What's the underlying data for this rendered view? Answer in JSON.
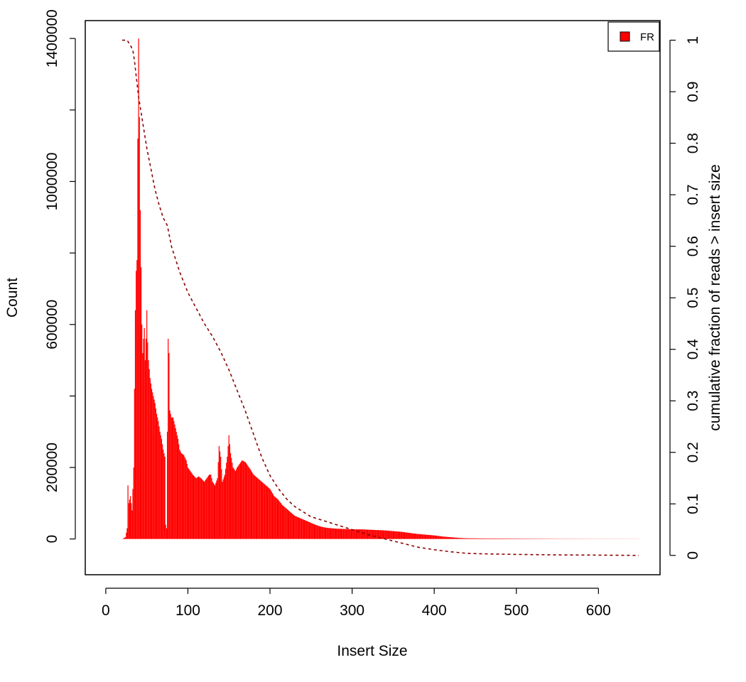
{
  "chart_data": {
    "type": "bar",
    "title": "",
    "xlabel": "Insert Size",
    "ylabel": "Count",
    "y2label": "cumulative fraction of reads > insert size",
    "xlim": [
      -25,
      675
    ],
    "ylim": [
      -100000,
      1450000
    ],
    "y2lim": [
      -0.0375,
      1.038
    ],
    "x_ticks": [
      "0",
      "100",
      "200",
      "300",
      "400",
      "500",
      "600"
    ],
    "y_ticks": [
      "0",
      "200000",
      "600000",
      "1000000",
      "1400000"
    ],
    "y2_ticks": [
      "0",
      "0.1",
      "0.2",
      "0.3",
      "0.4",
      "0.5",
      "0.6",
      "0.7",
      "0.8",
      "0.9",
      "1"
    ],
    "legend": {
      "position": "top-right",
      "entries": [
        "FR"
      ]
    },
    "colors": {
      "bars": "#ff0000",
      "cumulative": "#8b0000"
    },
    "series": [
      {
        "name": "FR",
        "kind": "histogram",
        "points": [
          [
            20,
            0
          ],
          [
            24,
            5000
          ],
          [
            26,
            30000
          ],
          [
            27,
            150000
          ],
          [
            28,
            100000
          ],
          [
            30,
            120000
          ],
          [
            32,
            80000
          ],
          [
            34,
            200000
          ],
          [
            35,
            420000
          ],
          [
            36,
            640000
          ],
          [
            37,
            750000
          ],
          [
            38,
            780000
          ],
          [
            39,
            1120000
          ],
          [
            40,
            1400000
          ],
          [
            41,
            1180000
          ],
          [
            42,
            920000
          ],
          [
            43,
            760000
          ],
          [
            44,
            600000
          ],
          [
            45,
            520000
          ],
          [
            46,
            560000
          ],
          [
            47,
            590000
          ],
          [
            48,
            500000
          ],
          [
            49,
            560000
          ],
          [
            50,
            640000
          ],
          [
            51,
            550000
          ],
          [
            52,
            500000
          ],
          [
            54,
            450000
          ],
          [
            56,
            420000
          ],
          [
            58,
            400000
          ],
          [
            60,
            380000
          ],
          [
            62,
            350000
          ],
          [
            64,
            330000
          ],
          [
            66,
            300000
          ],
          [
            68,
            280000
          ],
          [
            70,
            250000
          ],
          [
            72,
            230000
          ],
          [
            73,
            40000
          ],
          [
            74,
            30000
          ],
          [
            75,
            300000
          ],
          [
            76,
            560000
          ],
          [
            77,
            520000
          ],
          [
            78,
            360000
          ],
          [
            80,
            340000
          ],
          [
            82,
            340000
          ],
          [
            84,
            320000
          ],
          [
            86,
            300000
          ],
          [
            88,
            280000
          ],
          [
            90,
            250000
          ],
          [
            92,
            240000
          ],
          [
            95,
            235000
          ],
          [
            98,
            220000
          ],
          [
            100,
            200000
          ],
          [
            103,
            190000
          ],
          [
            106,
            180000
          ],
          [
            110,
            170000
          ],
          [
            113,
            175000
          ],
          [
            116,
            170000
          ],
          [
            120,
            160000
          ],
          [
            123,
            170000
          ],
          [
            126,
            180000
          ],
          [
            128,
            180000
          ],
          [
            130,
            160000
          ],
          [
            133,
            150000
          ],
          [
            136,
            170000
          ],
          [
            138,
            260000
          ],
          [
            140,
            230000
          ],
          [
            142,
            160000
          ],
          [
            145,
            180000
          ],
          [
            148,
            230000
          ],
          [
            150,
            290000
          ],
          [
            152,
            240000
          ],
          [
            155,
            200000
          ],
          [
            158,
            190000
          ],
          [
            160,
            200000
          ],
          [
            163,
            210000
          ],
          [
            166,
            220000
          ],
          [
            170,
            215000
          ],
          [
            173,
            205000
          ],
          [
            176,
            195000
          ],
          [
            180,
            180000
          ],
          [
            185,
            170000
          ],
          [
            190,
            160000
          ],
          [
            195,
            150000
          ],
          [
            200,
            140000
          ],
          [
            205,
            120000
          ],
          [
            210,
            110000
          ],
          [
            215,
            95000
          ],
          [
            220,
            85000
          ],
          [
            225,
            75000
          ],
          [
            230,
            65000
          ],
          [
            235,
            60000
          ],
          [
            240,
            55000
          ],
          [
            245,
            50000
          ],
          [
            250,
            45000
          ],
          [
            255,
            40000
          ],
          [
            260,
            36000
          ],
          [
            265,
            33000
          ],
          [
            270,
            31000
          ],
          [
            280,
            29000
          ],
          [
            290,
            28000
          ],
          [
            300,
            27000
          ],
          [
            310,
            27000
          ],
          [
            320,
            26000
          ],
          [
            330,
            25000
          ],
          [
            340,
            24000
          ],
          [
            350,
            22000
          ],
          [
            360,
            20000
          ],
          [
            370,
            17000
          ],
          [
            380,
            14000
          ],
          [
            390,
            12000
          ],
          [
            400,
            10000
          ],
          [
            410,
            7000
          ],
          [
            420,
            5000
          ],
          [
            430,
            3000
          ],
          [
            440,
            2000
          ],
          [
            460,
            1500
          ],
          [
            500,
            1000
          ],
          [
            550,
            500
          ],
          [
            600,
            300
          ],
          [
            649,
            200
          ]
        ]
      },
      {
        "name": "cumulative fraction of reads > insert size",
        "kind": "cumulative",
        "points": [
          [
            20,
            1.0
          ],
          [
            26,
            1.0
          ],
          [
            30,
            0.99
          ],
          [
            33,
            0.98
          ],
          [
            35,
            0.96
          ],
          [
            37,
            0.93
          ],
          [
            40,
            0.89
          ],
          [
            45,
            0.84
          ],
          [
            50,
            0.79
          ],
          [
            55,
            0.75
          ],
          [
            60,
            0.71
          ],
          [
            65,
            0.68
          ],
          [
            70,
            0.655
          ],
          [
            75,
            0.64
          ],
          [
            80,
            0.6
          ],
          [
            90,
            0.55
          ],
          [
            100,
            0.51
          ],
          [
            110,
            0.48
          ],
          [
            120,
            0.45
          ],
          [
            130,
            0.425
          ],
          [
            140,
            0.395
          ],
          [
            150,
            0.36
          ],
          [
            160,
            0.32
          ],
          [
            170,
            0.28
          ],
          [
            180,
            0.235
          ],
          [
            190,
            0.19
          ],
          [
            200,
            0.155
          ],
          [
            210,
            0.13
          ],
          [
            220,
            0.11
          ],
          [
            230,
            0.095
          ],
          [
            240,
            0.085
          ],
          [
            250,
            0.075
          ],
          [
            260,
            0.07
          ],
          [
            280,
            0.06
          ],
          [
            300,
            0.05
          ],
          [
            320,
            0.04
          ],
          [
            340,
            0.032
          ],
          [
            360,
            0.024
          ],
          [
            380,
            0.016
          ],
          [
            400,
            0.011
          ],
          [
            420,
            0.007
          ],
          [
            440,
            0.004
          ],
          [
            460,
            0.003
          ],
          [
            500,
            0.002
          ],
          [
            550,
            0.001
          ],
          [
            600,
            0.0005
          ],
          [
            649,
            0.0
          ]
        ]
      }
    ]
  }
}
